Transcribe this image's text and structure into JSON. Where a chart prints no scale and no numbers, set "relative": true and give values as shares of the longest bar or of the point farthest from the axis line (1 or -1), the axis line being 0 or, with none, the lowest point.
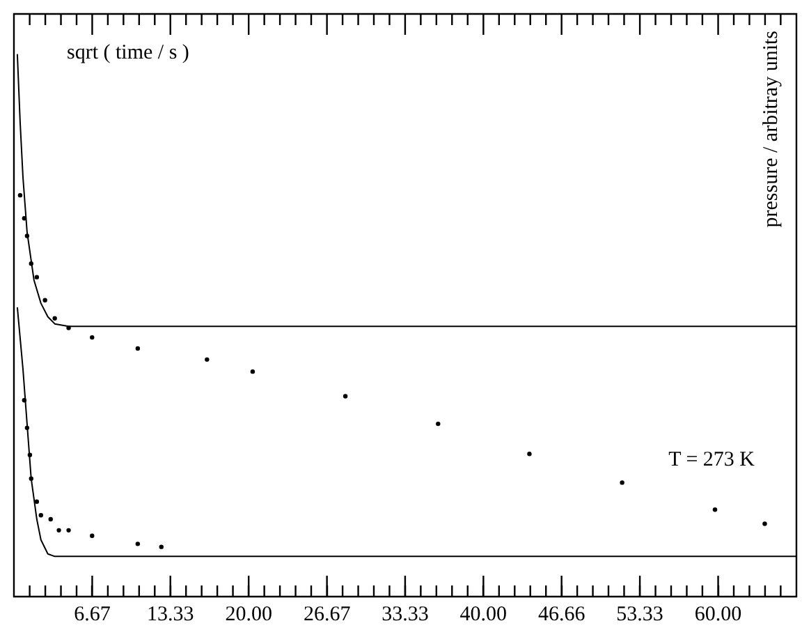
{
  "chart_data": {
    "type": "scatter",
    "xlabel": "sqrt ( time / s )",
    "ylabel": "pressure / arbitray units",
    "annotations": [
      "T = 273 K"
    ],
    "relative": true,
    "grid": false,
    "marker": "circle",
    "xlim": [
      0,
      66.67
    ],
    "xticks": [
      6.67,
      13.33,
      {
        "value": 20,
        "label": "20.00"
      },
      26.67,
      33.33,
      {
        "value": 40,
        "label": "40.00"
      },
      46.66,
      53.33,
      {
        "value": 60,
        "label": "60.00"
      }
    ],
    "series": [
      {
        "type": "scatter",
        "color": "#000000",
        "x": [
          0.53,
          0.88,
          1.12,
          1.47,
          1.95,
          2.65,
          3.48,
          4.66,
          6.66,
          10.55,
          16.45,
          20.34,
          28.24,
          36.14,
          43.92,
          51.82,
          59.73,
          63.97
        ],
        "values": [
          0.719,
          0.673,
          0.638,
          0.583,
          0.556,
          0.51,
          0.474,
          0.455,
          0.436,
          0.414,
          0.392,
          0.368,
          0.319,
          0.264,
          0.204,
          0.147,
          0.093,
          0.065
        ]
      },
      {
        "type": "scatter",
        "color": "#000000",
        "x": [
          0.88,
          1.12,
          1.36,
          1.47,
          1.95,
          2.3,
          3.13,
          3.83,
          4.66,
          6.66,
          10.55,
          12.56
        ],
        "values": [
          0.311,
          0.256,
          0.202,
          0.155,
          0.109,
          0.082,
          0.074,
          0.052,
          0.052,
          0.041,
          0.025,
          0.019
        ]
      },
      {
        "type": "line",
        "color": "#000000",
        "line_style": "solid",
        "marker": "none",
        "x": [
          0.29,
          0.53,
          0.77,
          1.12,
          1.71,
          2.3,
          2.89,
          3.48,
          4.66,
          66.67
        ],
        "values": [
          1,
          0.864,
          0.755,
          0.646,
          0.55,
          0.504,
          0.477,
          0.463,
          0.458,
          0.458
        ]
      },
      {
        "type": "line",
        "color": "#000000",
        "line_style": "solid",
        "marker": "none",
        "x": [
          0.29,
          0.77,
          1.12,
          1.47,
          1.95,
          2.3,
          2.89,
          3.48,
          66.67
        ],
        "values": [
          0.496,
          0.373,
          0.264,
          0.155,
          0.074,
          0.033,
          0.005,
          0,
          0
        ]
      }
    ]
  }
}
